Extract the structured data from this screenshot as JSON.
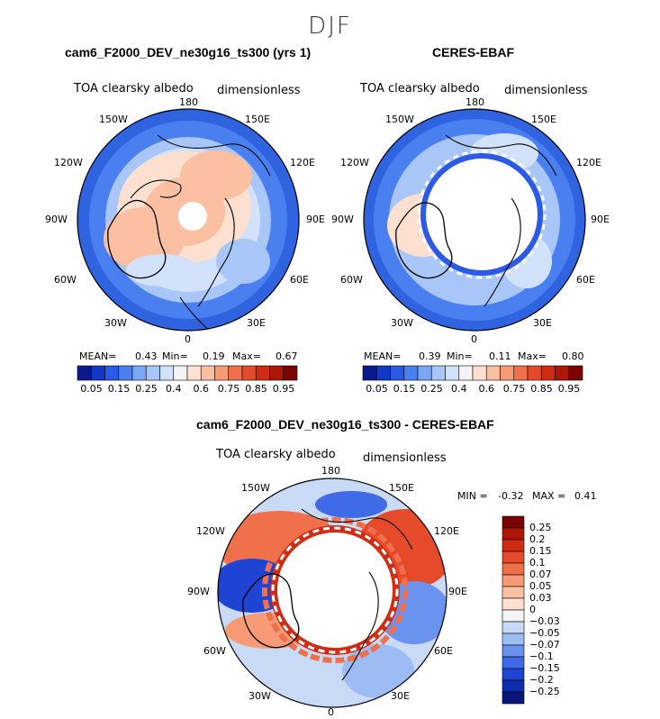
{
  "season": "DJF",
  "panels": [
    {
      "title": "cam6_F2000_DEV_ne30g16_ts300 (yrs 1)",
      "variable": "TOA clearsky albedo",
      "units": "dimensionless",
      "lon_labels": {
        "n180": "180",
        "w150": "150W",
        "e150": "150E",
        "w120": "120W",
        "e120": "120E",
        "w90": "90W",
        "e90": "90E",
        "w60": "60W",
        "e60": "60E",
        "w30": "30W",
        "e30": "30E",
        "s0": "0"
      },
      "stats": {
        "mean_label": "MEAN=",
        "mean": "0.43",
        "min_label": "Min=",
        "min": "0.19",
        "max_label": "Max=",
        "max": "0.67"
      }
    },
    {
      "title": "CERES-EBAF",
      "variable": "TOA clearsky albedo",
      "units": "dimensionless",
      "lon_labels": {
        "n180": "180",
        "w150": "150W",
        "e150": "150E",
        "w120": "120W",
        "e120": "120E",
        "w90": "90W",
        "e90": "90E",
        "w60": "60W",
        "e60": "60E",
        "w30": "30W",
        "e30": "30E",
        "s0": "0"
      },
      "stats": {
        "mean_label": "MEAN=",
        "mean": "0.39",
        "min_label": "Min=",
        "min": "0.11",
        "max_label": "Max=",
        "max": "0.80"
      }
    },
    {
      "title": "cam6_F2000_DEV_ne30g16_ts300 - CERES-EBAF",
      "variable": "TOA clearsky albedo",
      "units": "dimensionless",
      "lon_labels": {
        "n180": "180",
        "w150": "150W",
        "e150": "150E",
        "w120": "120W",
        "e120": "120E",
        "w90": "90W",
        "e90": "90E",
        "w60": "60W",
        "e60": "60E",
        "w30": "30W",
        "e30": "30E",
        "s0": "0"
      },
      "stats": {
        "min_label": "MIN =",
        "min": "-0.32",
        "max_label": "MAX =",
        "max": "0.41"
      }
    }
  ],
  "colorbar_abs": {
    "labels": [
      "0.05",
      "0.15",
      "0.25",
      "0.4",
      "0.6",
      "0.75",
      "0.85",
      "0.95"
    ],
    "colors": [
      "#0a1a8c",
      "#1338c8",
      "#2a5ae6",
      "#4a7ff0",
      "#7aa6f4",
      "#a8c6f7",
      "#d2e2fa",
      "#f4f4f4",
      "#fde0d0",
      "#fbc0a2",
      "#f79a76",
      "#f0704c",
      "#e54b2a",
      "#d02c14",
      "#b01608",
      "#7a0404"
    ]
  },
  "colorbar_diff": {
    "labels": [
      "0.25",
      "0.2",
      "0.15",
      "0.1",
      "0.07",
      "0.05",
      "0.03",
      "0",
      "−0.03",
      "−0.05",
      "−0.07",
      "−0.1",
      "−0.15",
      "−0.2",
      "−0.25"
    ],
    "colors": [
      "#7a0404",
      "#b01608",
      "#d02c14",
      "#e54b2a",
      "#f0704c",
      "#f79a76",
      "#fbc0a2",
      "#fde0d0",
      "#f4f4f4",
      "#c8daf6",
      "#9dbcf3",
      "#6a92ef",
      "#3f6ae8",
      "#1f44d4",
      "#0e2cae",
      "#08167a"
    ]
  }
}
